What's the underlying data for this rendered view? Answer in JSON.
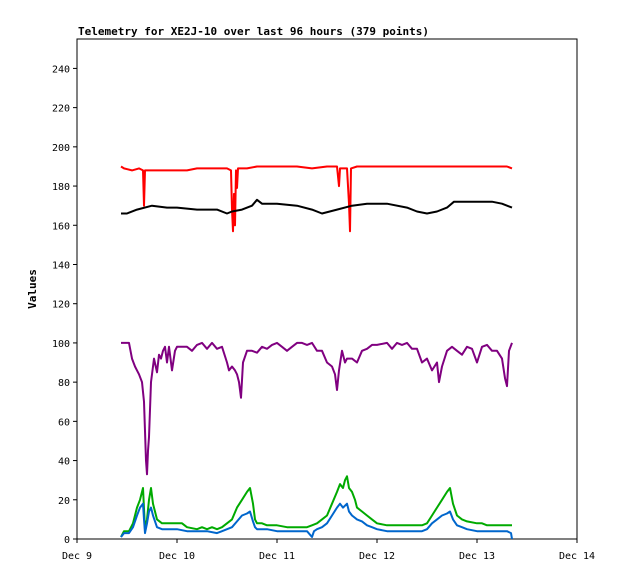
{
  "chart_data": {
    "type": "line",
    "title": "Telemetry for XE2J-10 over last 96 hours (379 points)",
    "xlabel": "",
    "ylabel": "Values",
    "x_ticks": [
      "Dec 9",
      "Dec 10",
      "Dec 11",
      "Dec 12",
      "Dec 13",
      "Dec 14"
    ],
    "xlim": [
      "Dec 9",
      "Dec 14"
    ],
    "ylim": [
      0,
      255
    ],
    "y_ticks": [
      0,
      20,
      40,
      60,
      80,
      100,
      120,
      140,
      160,
      180,
      200,
      220,
      240
    ],
    "grid": false,
    "legend": "none",
    "x_unit": "day offset from Dec 9 00:00",
    "series": [
      {
        "color": "#ff0000",
        "points": [
          [
            0.44,
            190
          ],
          [
            0.47,
            189
          ],
          [
            0.55,
            188
          ],
          [
            0.62,
            189
          ],
          [
            0.66,
            188
          ],
          [
            0.67,
            170
          ],
          [
            0.68,
            188
          ],
          [
            0.75,
            188
          ],
          [
            0.85,
            188
          ],
          [
            1.0,
            188
          ],
          [
            1.1,
            188
          ],
          [
            1.2,
            189
          ],
          [
            1.3,
            189
          ],
          [
            1.45,
            189
          ],
          [
            1.5,
            189
          ],
          [
            1.54,
            188
          ],
          [
            1.55,
            168
          ],
          [
            1.56,
            157
          ],
          [
            1.57,
            176
          ],
          [
            1.58,
            160
          ],
          [
            1.59,
            188
          ],
          [
            1.6,
            179
          ],
          [
            1.61,
            189
          ],
          [
            1.7,
            189
          ],
          [
            1.8,
            190
          ],
          [
            2.0,
            190
          ],
          [
            2.2,
            190
          ],
          [
            2.35,
            189
          ],
          [
            2.5,
            190
          ],
          [
            2.6,
            190
          ],
          [
            2.62,
            180
          ],
          [
            2.63,
            189
          ],
          [
            2.7,
            189
          ],
          [
            2.72,
            171
          ],
          [
            2.73,
            157
          ],
          [
            2.74,
            189
          ],
          [
            2.8,
            190
          ],
          [
            3.0,
            190
          ],
          [
            3.2,
            190
          ],
          [
            3.5,
            190
          ],
          [
            3.8,
            190
          ],
          [
            4.0,
            190
          ],
          [
            4.2,
            190
          ],
          [
            4.3,
            190
          ],
          [
            4.35,
            189
          ]
        ]
      },
      {
        "color": "#000000",
        "points": [
          [
            0.44,
            166
          ],
          [
            0.5,
            166
          ],
          [
            0.6,
            168
          ],
          [
            0.75,
            170
          ],
          [
            0.9,
            169
          ],
          [
            1.0,
            169
          ],
          [
            1.2,
            168
          ],
          [
            1.4,
            168
          ],
          [
            1.5,
            166
          ],
          [
            1.55,
            167
          ],
          [
            1.65,
            168
          ],
          [
            1.75,
            170
          ],
          [
            1.8,
            173
          ],
          [
            1.85,
            171
          ],
          [
            2.0,
            171
          ],
          [
            2.2,
            170
          ],
          [
            2.35,
            168
          ],
          [
            2.45,
            166
          ],
          [
            2.6,
            168
          ],
          [
            2.75,
            170
          ],
          [
            2.9,
            171
          ],
          [
            3.1,
            171
          ],
          [
            3.3,
            169
          ],
          [
            3.4,
            167
          ],
          [
            3.5,
            166
          ],
          [
            3.6,
            167
          ],
          [
            3.7,
            169
          ],
          [
            3.77,
            172
          ],
          [
            3.85,
            172
          ],
          [
            4.0,
            172
          ],
          [
            4.15,
            172
          ],
          [
            4.25,
            171
          ],
          [
            4.35,
            169
          ]
        ]
      },
      {
        "color": "#800080",
        "points": [
          [
            0.44,
            100
          ],
          [
            0.52,
            100
          ],
          [
            0.55,
            92
          ],
          [
            0.58,
            88
          ],
          [
            0.6,
            86
          ],
          [
            0.62,
            84
          ],
          [
            0.65,
            80
          ],
          [
            0.67,
            70
          ],
          [
            0.69,
            40
          ],
          [
            0.7,
            33
          ],
          [
            0.71,
            45
          ],
          [
            0.72,
            52
          ],
          [
            0.74,
            80
          ],
          [
            0.77,
            92
          ],
          [
            0.8,
            85
          ],
          [
            0.82,
            94
          ],
          [
            0.84,
            92
          ],
          [
            0.86,
            96
          ],
          [
            0.88,
            98
          ],
          [
            0.9,
            90
          ],
          [
            0.92,
            98
          ],
          [
            0.95,
            86
          ],
          [
            0.98,
            96
          ],
          [
            1.0,
            98
          ],
          [
            1.05,
            98
          ],
          [
            1.1,
            98
          ],
          [
            1.15,
            96
          ],
          [
            1.2,
            99
          ],
          [
            1.25,
            100
          ],
          [
            1.3,
            97
          ],
          [
            1.35,
            100
          ],
          [
            1.4,
            97
          ],
          [
            1.45,
            98
          ],
          [
            1.5,
            90
          ],
          [
            1.52,
            86
          ],
          [
            1.55,
            88
          ],
          [
            1.58,
            86
          ],
          [
            1.6,
            84
          ],
          [
            1.62,
            80
          ],
          [
            1.64,
            72
          ],
          [
            1.66,
            90
          ],
          [
            1.7,
            96
          ],
          [
            1.75,
            96
          ],
          [
            1.8,
            95
          ],
          [
            1.85,
            98
          ],
          [
            1.9,
            97
          ],
          [
            1.95,
            99
          ],
          [
            2.0,
            100
          ],
          [
            2.05,
            98
          ],
          [
            2.1,
            96
          ],
          [
            2.15,
            98
          ],
          [
            2.2,
            100
          ],
          [
            2.25,
            100
          ],
          [
            2.3,
            99
          ],
          [
            2.35,
            100
          ],
          [
            2.4,
            96
          ],
          [
            2.45,
            96
          ],
          [
            2.5,
            90
          ],
          [
            2.55,
            88
          ],
          [
            2.58,
            84
          ],
          [
            2.6,
            76
          ],
          [
            2.62,
            86
          ],
          [
            2.65,
            96
          ],
          [
            2.68,
            90
          ],
          [
            2.7,
            92
          ],
          [
            2.75,
            92
          ],
          [
            2.8,
            90
          ],
          [
            2.85,
            96
          ],
          [
            2.9,
            97
          ],
          [
            2.95,
            99
          ],
          [
            3.0,
            99
          ],
          [
            3.1,
            100
          ],
          [
            3.15,
            97
          ],
          [
            3.2,
            100
          ],
          [
            3.25,
            99
          ],
          [
            3.3,
            100
          ],
          [
            3.35,
            97
          ],
          [
            3.4,
            97
          ],
          [
            3.45,
            90
          ],
          [
            3.5,
            92
          ],
          [
            3.55,
            86
          ],
          [
            3.6,
            90
          ],
          [
            3.62,
            80
          ],
          [
            3.65,
            88
          ],
          [
            3.7,
            96
          ],
          [
            3.75,
            98
          ],
          [
            3.8,
            96
          ],
          [
            3.85,
            94
          ],
          [
            3.9,
            98
          ],
          [
            3.95,
            97
          ],
          [
            4.0,
            90
          ],
          [
            4.05,
            98
          ],
          [
            4.1,
            99
          ],
          [
            4.15,
            96
          ],
          [
            4.2,
            96
          ],
          [
            4.25,
            92
          ],
          [
            4.28,
            82
          ],
          [
            4.3,
            78
          ],
          [
            4.32,
            96
          ],
          [
            4.35,
            100
          ]
        ]
      },
      {
        "color": "#00aa00",
        "points": [
          [
            0.44,
            1
          ],
          [
            0.47,
            4
          ],
          [
            0.52,
            4
          ],
          [
            0.56,
            8
          ],
          [
            0.6,
            16
          ],
          [
            0.63,
            20
          ],
          [
            0.66,
            26
          ],
          [
            0.68,
            5
          ],
          [
            0.7,
            10
          ],
          [
            0.72,
            20
          ],
          [
            0.74,
            26
          ],
          [
            0.76,
            18
          ],
          [
            0.8,
            10
          ],
          [
            0.85,
            8
          ],
          [
            0.9,
            8
          ],
          [
            1.0,
            8
          ],
          [
            1.05,
            8
          ],
          [
            1.1,
            6
          ],
          [
            1.2,
            5
          ],
          [
            1.25,
            6
          ],
          [
            1.3,
            5
          ],
          [
            1.35,
            6
          ],
          [
            1.4,
            5
          ],
          [
            1.45,
            6
          ],
          [
            1.5,
            8
          ],
          [
            1.55,
            10
          ],
          [
            1.6,
            16
          ],
          [
            1.65,
            20
          ],
          [
            1.7,
            24
          ],
          [
            1.73,
            26
          ],
          [
            1.76,
            18
          ],
          [
            1.78,
            10
          ],
          [
            1.8,
            8
          ],
          [
            1.85,
            8
          ],
          [
            1.9,
            7
          ],
          [
            2.0,
            7
          ],
          [
            2.1,
            6
          ],
          [
            2.2,
            6
          ],
          [
            2.3,
            6
          ],
          [
            2.35,
            7
          ],
          [
            2.4,
            8
          ],
          [
            2.45,
            10
          ],
          [
            2.5,
            12
          ],
          [
            2.55,
            18
          ],
          [
            2.6,
            24
          ],
          [
            2.63,
            28
          ],
          [
            2.66,
            26
          ],
          [
            2.68,
            30
          ],
          [
            2.7,
            32
          ],
          [
            2.72,
            26
          ],
          [
            2.75,
            24
          ],
          [
            2.78,
            20
          ],
          [
            2.8,
            16
          ],
          [
            2.85,
            14
          ],
          [
            2.9,
            12
          ],
          [
            2.95,
            10
          ],
          [
            3.0,
            8
          ],
          [
            3.1,
            7
          ],
          [
            3.2,
            7
          ],
          [
            3.3,
            7
          ],
          [
            3.4,
            7
          ],
          [
            3.45,
            7
          ],
          [
            3.5,
            8
          ],
          [
            3.55,
            12
          ],
          [
            3.6,
            16
          ],
          [
            3.65,
            20
          ],
          [
            3.7,
            24
          ],
          [
            3.73,
            26
          ],
          [
            3.76,
            18
          ],
          [
            3.8,
            12
          ],
          [
            3.85,
            10
          ],
          [
            3.9,
            9
          ],
          [
            4.0,
            8
          ],
          [
            4.05,
            8
          ],
          [
            4.1,
            7
          ],
          [
            4.2,
            7
          ],
          [
            4.3,
            7
          ],
          [
            4.35,
            7
          ]
        ]
      },
      {
        "color": "#0066cc",
        "points": [
          [
            0.44,
            1
          ],
          [
            0.47,
            3
          ],
          [
            0.52,
            3
          ],
          [
            0.56,
            6
          ],
          [
            0.6,
            12
          ],
          [
            0.63,
            16
          ],
          [
            0.66,
            18
          ],
          [
            0.67,
            10
          ],
          [
            0.68,
            3
          ],
          [
            0.7,
            8
          ],
          [
            0.72,
            14
          ],
          [
            0.74,
            16
          ],
          [
            0.76,
            12
          ],
          [
            0.8,
            6
          ],
          [
            0.85,
            5
          ],
          [
            0.9,
            5
          ],
          [
            1.0,
            5
          ],
          [
            1.1,
            4
          ],
          [
            1.2,
            4
          ],
          [
            1.3,
            4
          ],
          [
            1.4,
            3
          ],
          [
            1.45,
            4
          ],
          [
            1.5,
            5
          ],
          [
            1.55,
            6
          ],
          [
            1.6,
            9
          ],
          [
            1.65,
            12
          ],
          [
            1.7,
            13
          ],
          [
            1.73,
            14
          ],
          [
            1.76,
            9
          ],
          [
            1.78,
            6
          ],
          [
            1.8,
            5
          ],
          [
            1.9,
            5
          ],
          [
            2.0,
            4
          ],
          [
            2.1,
            4
          ],
          [
            2.2,
            4
          ],
          [
            2.3,
            4
          ],
          [
            2.35,
            1
          ],
          [
            2.37,
            4
          ],
          [
            2.4,
            5
          ],
          [
            2.45,
            6
          ],
          [
            2.5,
            8
          ],
          [
            2.55,
            12
          ],
          [
            2.6,
            16
          ],
          [
            2.63,
            18
          ],
          [
            2.66,
            16
          ],
          [
            2.7,
            18
          ],
          [
            2.72,
            14
          ],
          [
            2.75,
            12
          ],
          [
            2.8,
            10
          ],
          [
            2.85,
            9
          ],
          [
            2.9,
            7
          ],
          [
            2.95,
            6
          ],
          [
            3.0,
            5
          ],
          [
            3.1,
            4
          ],
          [
            3.2,
            4
          ],
          [
            3.3,
            4
          ],
          [
            3.4,
            4
          ],
          [
            3.45,
            4
          ],
          [
            3.5,
            5
          ],
          [
            3.55,
            8
          ],
          [
            3.6,
            10
          ],
          [
            3.65,
            12
          ],
          [
            3.7,
            13
          ],
          [
            3.73,
            14
          ],
          [
            3.76,
            10
          ],
          [
            3.8,
            7
          ],
          [
            3.85,
            6
          ],
          [
            3.9,
            5
          ],
          [
            4.0,
            4
          ],
          [
            4.1,
            4
          ],
          [
            4.2,
            4
          ],
          [
            4.3,
            4
          ],
          [
            4.34,
            3
          ],
          [
            4.35,
            0
          ]
        ]
      }
    ]
  }
}
